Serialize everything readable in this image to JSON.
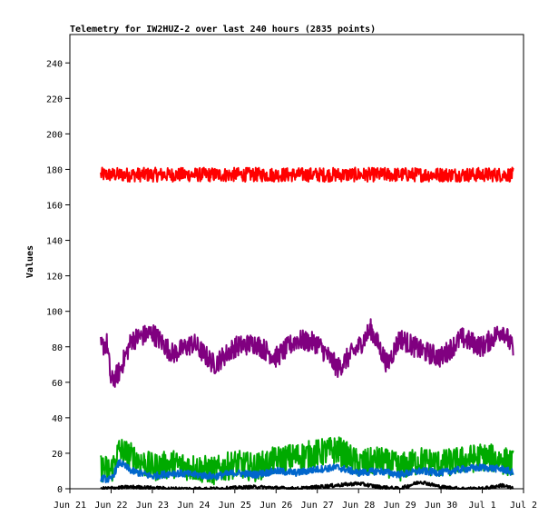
{
  "chart_data": {
    "type": "line",
    "title": "Telemetry for IW2HUZ-2 over last 240 hours (2835 points)",
    "ylabel": "Values",
    "xlabel": "",
    "ylim": [
      0,
      256
    ],
    "xlim": [
      0,
      11
    ],
    "grid": false,
    "legend": "none",
    "y_ticks": [
      0,
      20,
      40,
      60,
      80,
      100,
      120,
      140,
      160,
      180,
      200,
      220,
      240
    ],
    "x_ticks": [
      {
        "label": "Jun 21",
        "value": 0
      },
      {
        "label": "Jun 22",
        "value": 1
      },
      {
        "label": "Jun 23",
        "value": 2
      },
      {
        "label": "Jun 24",
        "value": 3
      },
      {
        "label": "Jun 25",
        "value": 4
      },
      {
        "label": "Jun 26",
        "value": 5
      },
      {
        "label": "Jun 27",
        "value": 6
      },
      {
        "label": "Jun 28",
        "value": 7
      },
      {
        "label": "Jun 29",
        "value": 8
      },
      {
        "label": "Jun 30",
        "value": 9
      },
      {
        "label": "Jul 1",
        "value": 10
      },
      {
        "label": "Jul 2",
        "value": 11
      }
    ],
    "series": [
      {
        "color": "#ff0000",
        "x": [
          0.75,
          1.5,
          2.5,
          3.5,
          4.5,
          5.5,
          6.5,
          7.5,
          8.5,
          9.5,
          10.75
        ],
        "y": [
          177,
          177,
          177,
          177,
          177,
          177,
          177,
          177,
          177,
          177,
          177
        ],
        "spread": 4
      },
      {
        "color": "#800080",
        "x": [
          0.75,
          0.9,
          1.0,
          1.2,
          1.5,
          2.0,
          2.5,
          3.0,
          3.5,
          4.0,
          4.5,
          5.0,
          5.5,
          6.0,
          6.5,
          7.0,
          7.3,
          7.7,
          8.0,
          8.5,
          9.0,
          9.5,
          10.0,
          10.5,
          10.75
        ],
        "y": [
          80,
          82,
          60,
          66,
          84,
          88,
          76,
          82,
          70,
          80,
          82,
          74,
          84,
          82,
          68,
          80,
          90,
          70,
          85,
          78,
          74,
          85,
          80,
          90,
          78
        ],
        "spread": 6
      },
      {
        "color": "#00aa00",
        "x": [
          0.75,
          1.0,
          1.2,
          1.5,
          2.0,
          2.5,
          3.0,
          3.5,
          4.0,
          4.5,
          5.0,
          5.5,
          6.0,
          6.5,
          7.0,
          7.5,
          8.0,
          8.5,
          9.0,
          9.5,
          10.0,
          10.5,
          10.75
        ],
        "y": [
          12,
          10,
          22,
          18,
          12,
          14,
          12,
          10,
          14,
          12,
          16,
          18,
          20,
          22,
          14,
          16,
          12,
          16,
          14,
          16,
          18,
          16,
          14
        ],
        "spread": 8
      },
      {
        "color": "#0066cc",
        "x": [
          0.75,
          1.0,
          1.2,
          1.5,
          2.0,
          2.5,
          3.0,
          3.5,
          4.0,
          4.5,
          5.0,
          5.5,
          6.0,
          6.5,
          7.0,
          7.5,
          8.0,
          8.5,
          9.0,
          9.5,
          10.0,
          10.5,
          10.75
        ],
        "y": [
          6,
          5,
          15,
          10,
          7,
          9,
          8,
          7,
          9,
          8,
          10,
          9,
          11,
          12,
          9,
          10,
          8,
          10,
          9,
          11,
          12,
          11,
          9
        ],
        "spread": 2
      },
      {
        "color": "#000000",
        "x": [
          0.75,
          1.5,
          2.5,
          3.5,
          4.5,
          5.5,
          6.5,
          7.0,
          7.5,
          8.0,
          8.5,
          9.0,
          9.5,
          10.0,
          10.5,
          10.75
        ],
        "y": [
          0,
          1,
          0,
          0,
          1,
          0,
          2,
          3,
          1,
          0,
          4,
          1,
          0,
          0,
          2,
          0
        ],
        "spread": 1
      }
    ]
  }
}
